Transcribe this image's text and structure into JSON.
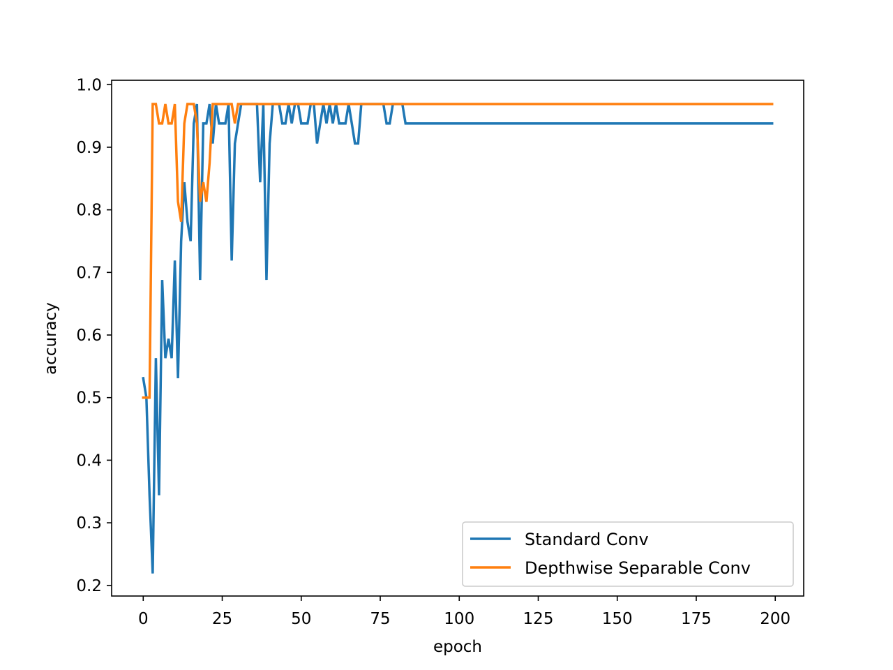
{
  "chart_data": {
    "type": "line",
    "title": "",
    "xlabel": "epoch",
    "ylabel": "accuracy",
    "xlim": [
      -10,
      209
    ],
    "ylim": [
      0.183,
      1.007
    ],
    "xticks": [
      0,
      25,
      50,
      75,
      100,
      125,
      150,
      175,
      200
    ],
    "yticks": [
      0.2,
      0.3,
      0.4,
      0.5,
      0.6,
      0.7,
      0.8,
      0.9,
      1.0
    ],
    "ytick_labels": [
      "0.2",
      "0.3",
      "0.4",
      "0.5",
      "0.6",
      "0.7",
      "0.8",
      "0.9",
      "1.0"
    ],
    "grid": false,
    "legend_position": "lower right",
    "series": [
      {
        "name": "Standard Conv",
        "color": "#1f77b4",
        "x": [
          0,
          1,
          2,
          3,
          4,
          5,
          6,
          7,
          8,
          9,
          10,
          11,
          12,
          13,
          14,
          15,
          16,
          17,
          18,
          19,
          20,
          21,
          22,
          23,
          24,
          25,
          26,
          27,
          28,
          29,
          30,
          31,
          32,
          33,
          34,
          35,
          36,
          37,
          38,
          39,
          40,
          41,
          42,
          43,
          44,
          45,
          46,
          47,
          48,
          49,
          50,
          51,
          52,
          53,
          54,
          55,
          56,
          57,
          58,
          59,
          60,
          61,
          62,
          63,
          64,
          65,
          66,
          67,
          68,
          69,
          70,
          75,
          76,
          77,
          78,
          79,
          80,
          81,
          82,
          83,
          84,
          199
        ],
        "y": [
          0.531,
          0.5,
          0.344,
          0.219,
          0.563,
          0.344,
          0.688,
          0.563,
          0.594,
          0.563,
          0.719,
          0.531,
          0.75,
          0.844,
          0.781,
          0.75,
          0.938,
          0.969,
          0.688,
          0.938,
          0.938,
          0.969,
          0.906,
          0.969,
          0.938,
          0.938,
          0.938,
          0.969,
          0.719,
          0.906,
          0.938,
          0.969,
          0.969,
          0.969,
          0.969,
          0.969,
          0.969,
          0.844,
          0.969,
          0.688,
          0.906,
          0.969,
          0.969,
          0.969,
          0.938,
          0.938,
          0.969,
          0.938,
          0.969,
          0.969,
          0.938,
          0.938,
          0.938,
          0.969,
          0.969,
          0.906,
          0.938,
          0.969,
          0.938,
          0.969,
          0.938,
          0.969,
          0.938,
          0.938,
          0.938,
          0.969,
          0.938,
          0.906,
          0.906,
          0.969,
          0.969,
          0.969,
          0.969,
          0.938,
          0.938,
          0.969,
          0.969,
          0.969,
          0.969,
          0.938,
          0.938,
          0.938
        ]
      },
      {
        "name": "Depthwise Separable Conv",
        "color": "#ff7f0e",
        "x": [
          0,
          1,
          2,
          3,
          4,
          5,
          6,
          7,
          8,
          9,
          10,
          11,
          12,
          13,
          14,
          15,
          16,
          17,
          18,
          19,
          20,
          21,
          22,
          23,
          24,
          25,
          26,
          27,
          28,
          29,
          30,
          31,
          199
        ],
        "y": [
          0.5,
          0.5,
          0.5,
          0.969,
          0.969,
          0.938,
          0.938,
          0.969,
          0.938,
          0.938,
          0.969,
          0.813,
          0.781,
          0.938,
          0.969,
          0.969,
          0.969,
          0.938,
          0.813,
          0.844,
          0.813,
          0.875,
          0.969,
          0.969,
          0.969,
          0.969,
          0.969,
          0.969,
          0.969,
          0.938,
          0.969,
          0.969,
          0.969
        ]
      }
    ]
  }
}
